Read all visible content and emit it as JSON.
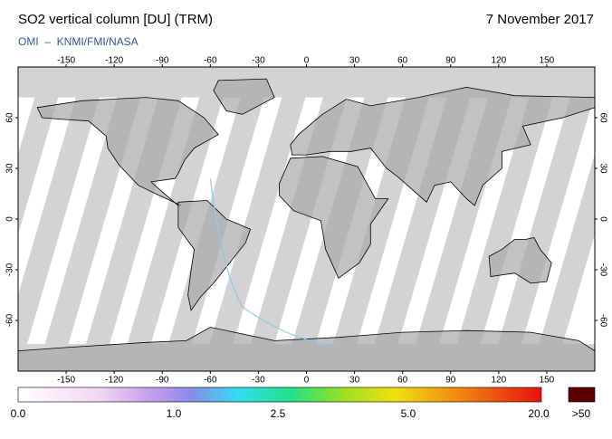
{
  "header": {
    "title": "SO2 vertical column [DU] (TRM)",
    "date": "7 November 2017",
    "source": "OMI  –  KNMI/FMI/NASA"
  },
  "map": {
    "lon_range": [
      -180,
      180
    ],
    "lat_range": [
      -90,
      90
    ],
    "lon_ticks": [
      -150,
      -120,
      -90,
      -60,
      -30,
      0,
      30,
      60,
      90,
      120,
      150
    ],
    "lat_ticks": [
      -60,
      -30,
      0,
      30,
      60
    ]
  },
  "colorbar": {
    "labels": [
      "0.0",
      "1.0",
      "2.5",
      "5.0",
      "20.0",
      ">50"
    ]
  }
}
